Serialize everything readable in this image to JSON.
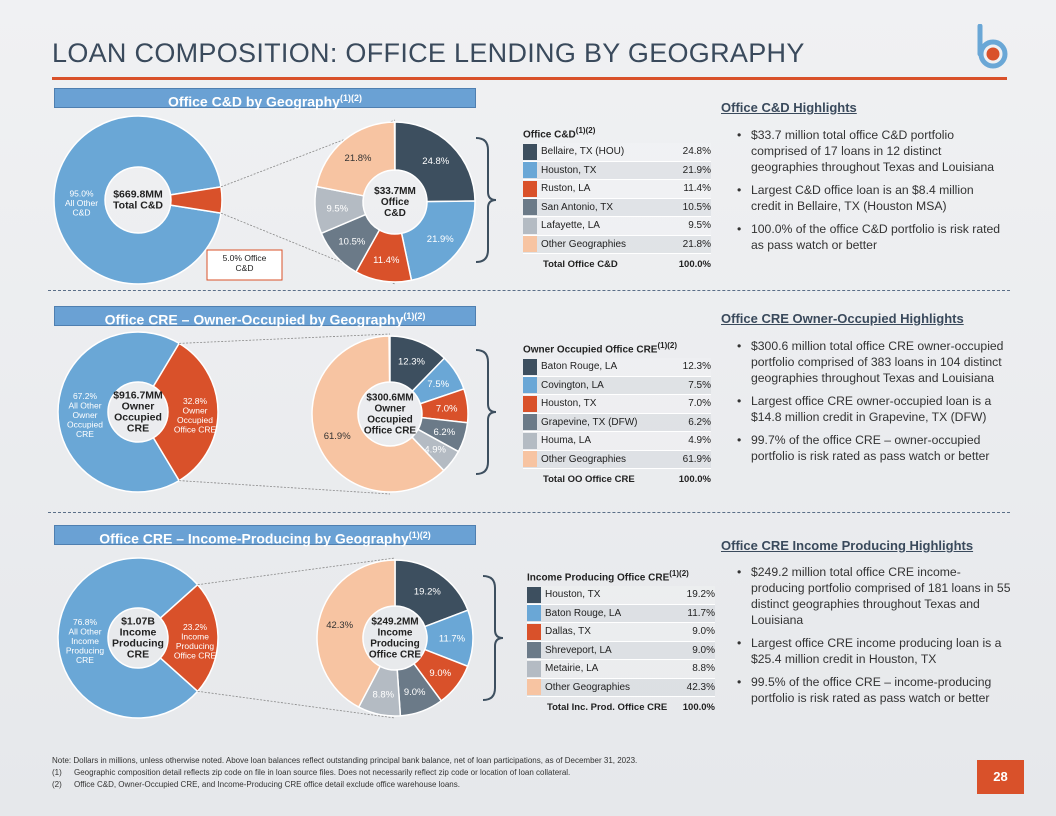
{
  "page": {
    "title": "LOAN COMPOSITION: OFFICE LENDING BY GEOGRAPHY",
    "page_number": "28",
    "colors": {
      "accent": "#d9512a",
      "title": "#3a4a5c",
      "section_bar": "#6aa1d4"
    }
  },
  "palette": [
    "#3d4f5f",
    "#6aa7d6",
    "#d9512a",
    "#6b7a88",
    "#b4bbc3",
    "#f7c4a2"
  ],
  "sections": [
    {
      "label": "Office C&D by Geography",
      "label_sup": "(1)(2)",
      "overall": {
        "center": [
          "$669.8MM",
          "Total C&D"
        ],
        "other_label": [
          "95.0%",
          "All Other",
          "C&D"
        ],
        "slice_label": [
          "5.0% Office",
          "C&D"
        ],
        "slice_pct": 5.0,
        "boxed_label": true
      },
      "detail": {
        "center": [
          "$33.7MM",
          "Office",
          "C&D"
        ]
      },
      "table": {
        "header": "Office C&D",
        "header_sup": "(1)(2)",
        "rows": [
          {
            "label": "Bellaire, TX (HOU)",
            "value": "24.8%",
            "pct": 24.8
          },
          {
            "label": "Houston, TX",
            "value": "21.9%",
            "pct": 21.9
          },
          {
            "label": "Ruston, LA",
            "value": "11.4%",
            "pct": 11.4
          },
          {
            "label": "San Antonio, TX",
            "value": "10.5%",
            "pct": 10.5
          },
          {
            "label": "Lafayette, LA",
            "value": "9.5%",
            "pct": 9.5
          },
          {
            "label": "Other Geographies",
            "value": "21.8%",
            "pct": 21.8
          }
        ],
        "total_label": "Total Office C&D",
        "total_value": "100.0%"
      },
      "highlights_title": "Office C&D Highlights",
      "bullets": [
        "$33.7 million total office C&D portfolio comprised of 17 loans in 12 distinct geographies throughout Texas and Louisiana",
        "Largest C&D office loan is an $8.4 million credit in Bellaire, TX (Houston MSA)",
        "100.0% of the office C&D portfolio is risk rated as pass watch or better"
      ]
    },
    {
      "label": "Office CRE – Owner-Occupied by Geography",
      "label_sup": "(1)(2)",
      "overall": {
        "center": [
          "$916.7MM",
          "Owner",
          "Occupied",
          "CRE"
        ],
        "other_label": [
          "67.2%",
          "All Other",
          "Owner",
          "Occupied",
          "CRE"
        ],
        "slice_label": [
          "32.8%",
          "Owner",
          "Occupied",
          "Office CRE"
        ],
        "slice_pct": 32.8,
        "boxed_label": false
      },
      "detail": {
        "center": [
          "$300.6MM",
          "Owner",
          "Occupied",
          "Office CRE"
        ]
      },
      "table": {
        "header": "Owner Occupied Office CRE",
        "header_sup": "(1)(2)",
        "rows": [
          {
            "label": "Baton Rouge, LA",
            "value": "12.3%",
            "pct": 12.3
          },
          {
            "label": "Covington, LA",
            "value": "7.5%",
            "pct": 7.5
          },
          {
            "label": "Houston, TX",
            "value": "7.0%",
            "pct": 7.0
          },
          {
            "label": "Grapevine, TX (DFW)",
            "value": "6.2%",
            "pct": 6.2
          },
          {
            "label": "Houma, LA",
            "value": "4.9%",
            "pct": 4.9
          },
          {
            "label": "Other Geographies",
            "value": "61.9%",
            "pct": 61.9
          }
        ],
        "total_label": "Total OO Office CRE",
        "total_value": "100.0%"
      },
      "highlights_title": "Office CRE Owner-Occupied Highlights",
      "bullets": [
        "$300.6 million total office CRE owner-occupied portfolio comprised of 383 loans in 104 distinct geographies throughout Texas and Louisiana",
        "Largest office CRE owner-occupied loan is a $14.8 million credit in Grapevine, TX (DFW)",
        "99.7% of the office CRE – owner-occupied portfolio is risk rated as pass watch or better"
      ]
    },
    {
      "label": "Office CRE – Income-Producing by Geography",
      "label_sup": "(1)(2)",
      "overall": {
        "center": [
          "$1.07B",
          "Income",
          "Producing",
          "CRE"
        ],
        "other_label": [
          "76.8%",
          "All Other",
          "Income",
          "Producing",
          "CRE"
        ],
        "slice_label": [
          "23.2%",
          "Income",
          "Producing",
          "Office CRE"
        ],
        "slice_pct": 23.2,
        "boxed_label": false
      },
      "detail": {
        "center": [
          "$249.2MM",
          "Income",
          "Producing",
          "Office CRE"
        ]
      },
      "table": {
        "header": "Income Producing Office CRE",
        "header_sup": "(1)(2)",
        "rows": [
          {
            "label": "Houston, TX",
            "value": "19.2%",
            "pct": 19.2
          },
          {
            "label": "Baton Rouge, LA",
            "value": "11.7%",
            "pct": 11.7
          },
          {
            "label": "Dallas, TX",
            "value": "9.0%",
            "pct": 9.0
          },
          {
            "label": "Shreveport, LA",
            "value": "9.0%",
            "pct": 9.0
          },
          {
            "label": "Metairie, LA",
            "value": "8.8%",
            "pct": 8.8
          },
          {
            "label": "Other Geographies",
            "value": "42.3%",
            "pct": 42.3
          }
        ],
        "total_label": "Total Inc. Prod. Office CRE",
        "total_value": "100.0%"
      },
      "highlights_title": "Office CRE Income Producing Highlights",
      "bullets": [
        "$249.2 million total office CRE income-producing portfolio comprised of 181 loans in 55 distinct geographies throughout Texas and Louisiana",
        "Largest office CRE income producing loan is a $25.4 million credit in Houston, TX",
        "99.5% of the office CRE – income-producing portfolio is risk rated as pass watch or better"
      ]
    }
  ],
  "notes": {
    "intro": "Note: Dollars in millions, unless otherwise noted. Above loan balances reflect outstanding principal bank balance, net of loan participations, as of December 31, 2023.",
    "items": [
      {
        "num": "(1)",
        "text": "Geographic composition detail reflects zip code on file in loan source files. Does not necessarily reflect zip code or location of loan collateral."
      },
      {
        "num": "(2)",
        "text": "Office C&D, Owner-Occupied CRE, and Income-Producing CRE office detail exclude office warehouse loans."
      }
    ]
  },
  "chart_data": [
    {
      "type": "pie",
      "title": "Office C&D by Geography",
      "categories": [
        "All Other C&D",
        "Office C&D"
      ],
      "values": [
        95.0,
        5.0
      ]
    },
    {
      "type": "pie",
      "title": "Office C&D",
      "categories": [
        "Bellaire, TX (HOU)",
        "Houston, TX",
        "Ruston, LA",
        "San Antonio, TX",
        "Lafayette, LA",
        "Other Geographies"
      ],
      "values": [
        24.8,
        21.9,
        11.4,
        10.5,
        9.5,
        21.8
      ]
    },
    {
      "type": "pie",
      "title": "Office CRE – Owner-Occupied by Geography",
      "categories": [
        "All Other Owner Occupied CRE",
        "Owner Occupied Office CRE"
      ],
      "values": [
        67.2,
        32.8
      ]
    },
    {
      "type": "pie",
      "title": "Owner Occupied Office CRE",
      "categories": [
        "Baton Rouge, LA",
        "Covington, LA",
        "Houston, TX",
        "Grapevine, TX (DFW)",
        "Houma, LA",
        "Other Geographies"
      ],
      "values": [
        12.3,
        7.5,
        7.0,
        6.2,
        4.9,
        61.9
      ]
    },
    {
      "type": "pie",
      "title": "Office CRE – Income-Producing by Geography",
      "categories": [
        "All Other Income Producing CRE",
        "Income Producing Office CRE"
      ],
      "values": [
        76.8,
        23.2
      ]
    },
    {
      "type": "pie",
      "title": "Income Producing Office CRE",
      "categories": [
        "Houston, TX",
        "Baton Rouge, LA",
        "Dallas, TX",
        "Shreveport, LA",
        "Metairie, LA",
        "Other Geographies"
      ],
      "values": [
        19.2,
        11.7,
        9.0,
        9.0,
        8.8,
        42.3
      ]
    }
  ]
}
